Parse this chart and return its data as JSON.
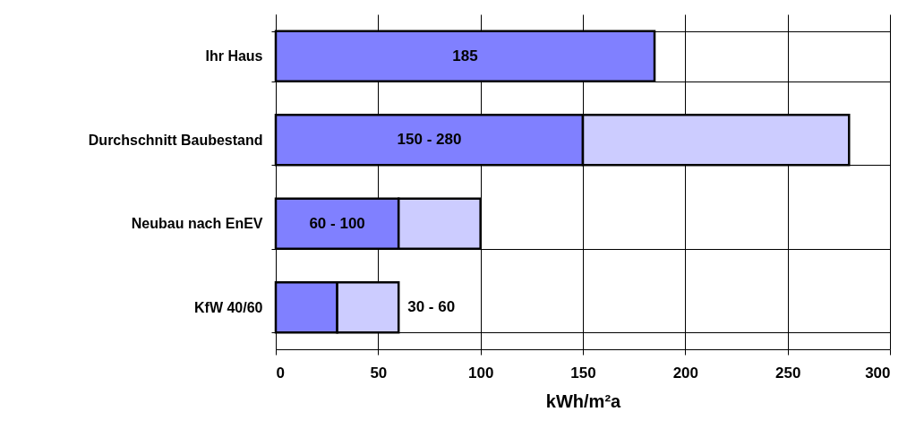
{
  "chart_data": {
    "type": "bar",
    "orientation": "horizontal",
    "stacked": true,
    "xlabel": "kWh/m²a",
    "categories": [
      "Ihr Haus",
      "Durchschnitt Baubestand",
      "Neubau nach EnEV",
      "KfW 40/60"
    ],
    "series": [
      {
        "color": "#8080ff",
        "values": [
          185,
          150,
          60,
          30
        ],
        "value_labels": [
          "185",
          "150 - 280",
          "60 - 100",
          null
        ]
      },
      {
        "color": "#ccccff",
        "values": [
          null,
          130,
          40,
          30
        ],
        "value_labels": [
          null,
          null,
          null,
          "30 - 60"
        ]
      }
    ],
    "xlim": [
      0,
      300
    ],
    "xticks": [
      0,
      50,
      100,
      150,
      200,
      250,
      300
    ],
    "grid": true
  }
}
